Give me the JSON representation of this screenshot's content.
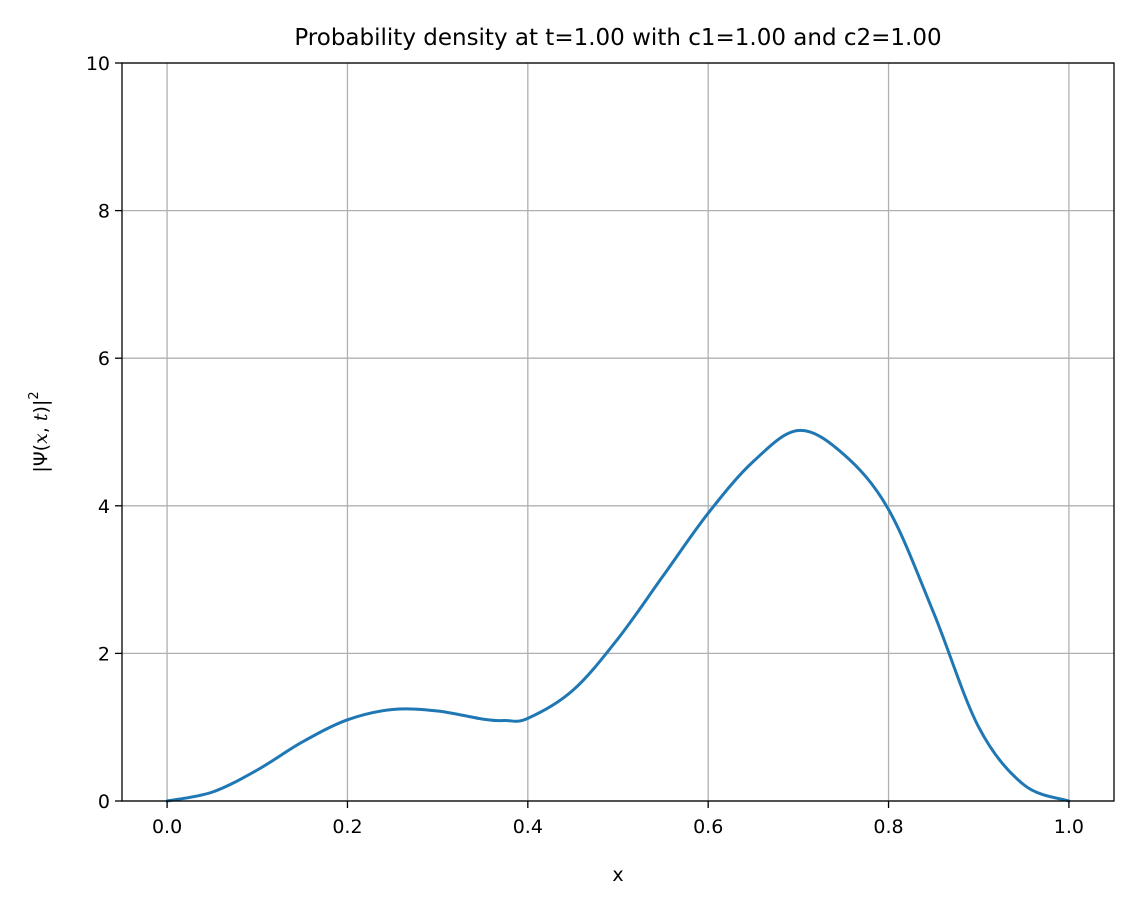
{
  "chart_data": {
    "type": "line",
    "title": "Probability density at t=1.00 with c1=1.00 and c2=1.00",
    "xlabel": "x",
    "ylabel": {
      "parts": [
        "|Ψ(",
        "x",
        ", ",
        "t",
        ")|",
        "2"
      ]
    },
    "xlim": [
      -0.05,
      1.05
    ],
    "ylim": [
      0,
      10
    ],
    "xticks": [
      "0.0",
      "0.2",
      "0.4",
      "0.6",
      "0.8",
      "1.0"
    ],
    "yticks": [
      "0",
      "2",
      "4",
      "6",
      "8",
      "10"
    ],
    "grid": true,
    "series": [
      {
        "color": "#1f77b4",
        "x": [
          0.0,
          0.05,
          0.1,
          0.15,
          0.2,
          0.25,
          0.3,
          0.35,
          0.375,
          0.4,
          0.45,
          0.5,
          0.55,
          0.6,
          0.65,
          0.7,
          0.75,
          0.8,
          0.85,
          0.9,
          0.95,
          1.0
        ],
        "y": [
          0.0,
          0.12,
          0.42,
          0.8,
          1.1,
          1.24,
          1.22,
          1.11,
          1.09,
          1.12,
          1.5,
          2.2,
          3.05,
          3.9,
          4.6,
          5.02,
          4.7,
          3.95,
          2.55,
          1.0,
          0.22,
          0.0
        ]
      }
    ]
  }
}
